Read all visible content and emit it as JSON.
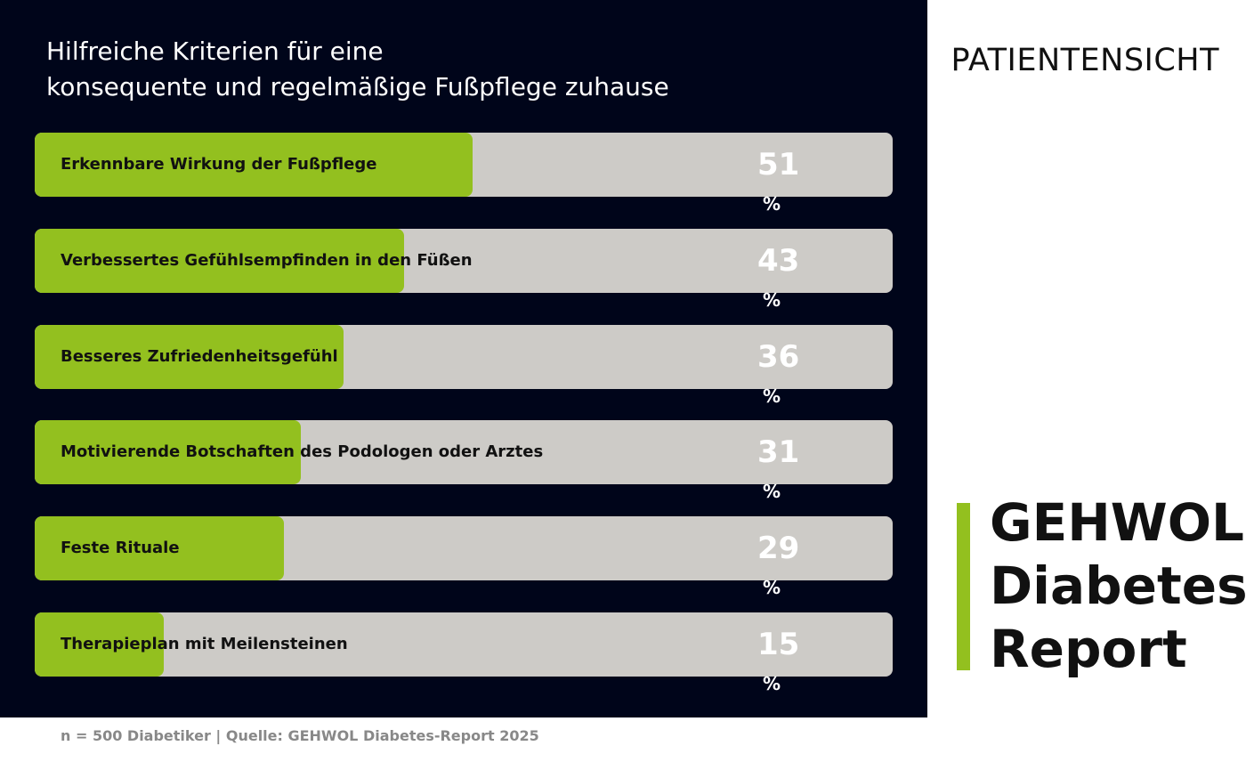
{
  "chart_data": {
    "type": "bar",
    "orientation": "horizontal",
    "title": "Hilfreiche Kriterien für eine\nkonsequente und regelmäßige Fußpflege zuhause",
    "categories": [
      "Erkennbare Wirkung der Fußpflege",
      "Verbessertes Gefühlsempfinden in den Füßen",
      "Besseres Zufriedenheitsgefühl",
      "Motivierende Botschaften des Podologen oder Arztes",
      "Feste Rituale",
      "Therapieplan mit Meilensteinen"
    ],
    "values": [
      51,
      43,
      36,
      31,
      29,
      15
    ],
    "value_suffix": "%",
    "color": "#93c01f",
    "track_color": "#cdcbc7",
    "xlim": [
      0,
      100
    ]
  },
  "header": {
    "section": "PATIENTENSICHT"
  },
  "brand": {
    "lines": [
      "GEHWOL",
      "Diabetes",
      "Report"
    ]
  },
  "footer": {
    "note": "n = 500 Diabetiker | Quelle: GEHWOL Diabetes-Report 2025"
  }
}
